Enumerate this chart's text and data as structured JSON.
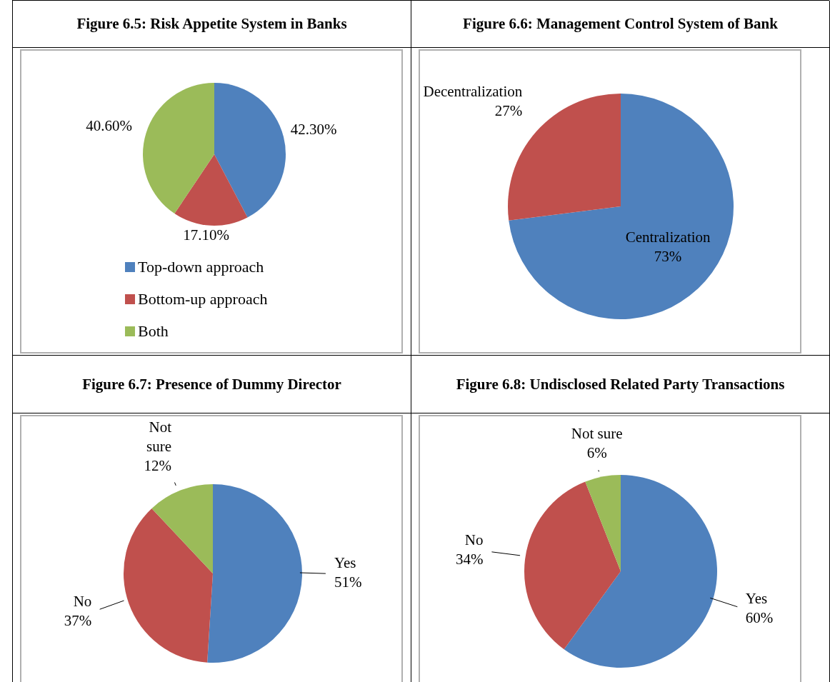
{
  "chart_data": [
    {
      "type": "pie",
      "title": "Figure 6.5: Risk Appetite System in Banks",
      "categories": [
        "Top-down approach",
        "Bottom-up approach",
        "Both"
      ],
      "values": [
        42.3,
        17.1,
        40.6
      ],
      "colors": [
        "#4f81bd",
        "#c0504d",
        "#9bbb59"
      ],
      "value_labels": [
        "42.30%",
        "17.10%",
        "40.60%"
      ],
      "legend": "bottom"
    },
    {
      "type": "pie",
      "title": "Figure 6.6: Management Control System of Bank",
      "categories": [
        "Centralization",
        "Decentralization"
      ],
      "values": [
        73,
        27
      ],
      "colors": [
        "#4f81bd",
        "#c0504d"
      ],
      "value_labels": [
        "73%",
        "27%"
      ]
    },
    {
      "type": "pie",
      "title": "Figure 6.7: Presence of Dummy Director",
      "categories": [
        "Yes",
        "No",
        "Not sure"
      ],
      "values": [
        51,
        37,
        12
      ],
      "colors": [
        "#4f81bd",
        "#c0504d",
        "#9bbb59"
      ],
      "value_labels": [
        "51%",
        "37%",
        "12%"
      ]
    },
    {
      "type": "pie",
      "title": "Figure 6.8: Undisclosed Related Party Transactions",
      "categories": [
        "Yes",
        "No",
        "Not sure"
      ],
      "values": [
        60,
        34,
        6
      ],
      "colors": [
        "#4f81bd",
        "#c0504d",
        "#9bbb59"
      ],
      "value_labels": [
        "60%",
        "34%",
        "6%"
      ]
    }
  ]
}
